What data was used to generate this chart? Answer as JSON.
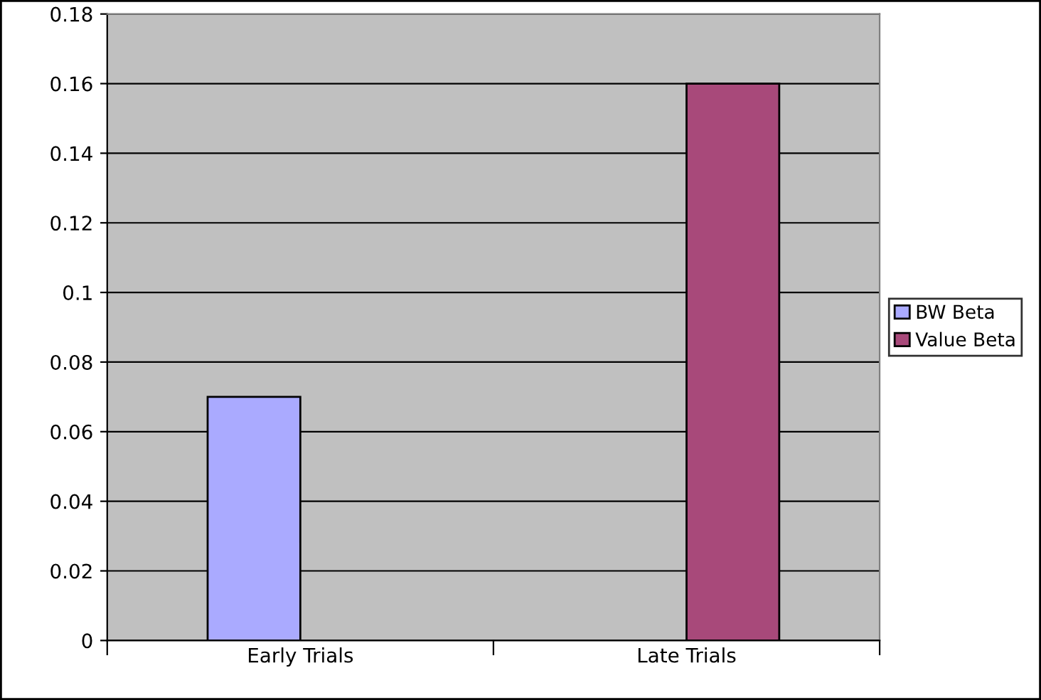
{
  "chart_data": {
    "type": "bar",
    "categories": [
      "Early Trials",
      "Late Trials"
    ],
    "series": [
      {
        "name": "BW Beta",
        "color": "#aaaaff",
        "values": [
          0.07,
          null
        ]
      },
      {
        "name": "Value Beta",
        "color": "#a8497a",
        "values": [
          null,
          0.16
        ]
      }
    ],
    "ylim": [
      0,
      0.18
    ],
    "yticks": [
      0,
      0.02,
      0.04,
      0.06,
      0.08,
      {
        "value": 0.1,
        "label": "0.1"
      },
      0.12,
      0.14,
      0.16,
      0.18
    ],
    "grid": "y",
    "legend": "right"
  }
}
